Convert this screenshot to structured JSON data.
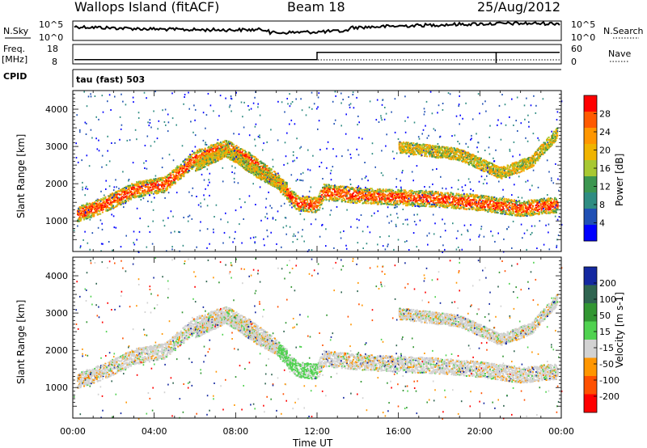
{
  "header": {
    "title": "Wallops Island (fitACF)",
    "beam": "Beam 18",
    "date": "25/Aug/2012"
  },
  "panels": {
    "nsky": {
      "label": "N.Sky",
      "ticks_left": [
        "10^5",
        "10^0"
      ],
      "ticks_right": [
        "10^5",
        "10^0"
      ],
      "right_label": "N.Search"
    },
    "freq": {
      "label_line1": "Freq.",
      "label_line2": "[MHz]",
      "ticks_left": [
        "18",
        "8"
      ],
      "ticks_right": [
        "60",
        "0"
      ],
      "right_label": "Nave"
    },
    "cpid": {
      "label": "CPID",
      "value": "tau (fast) 503"
    }
  },
  "axes": {
    "ylabel": "Slant Range [km]",
    "yticks": [
      "4000",
      "3000",
      "2000",
      "1000"
    ],
    "xticks": [
      "00:00",
      "04:00",
      "08:00",
      "12:00",
      "16:00",
      "20:00",
      "00:00"
    ],
    "xlabel": "Time UT"
  },
  "colorbars": {
    "power": {
      "label": "Power [dB]",
      "ticks": [
        "28",
        "24",
        "20",
        "16",
        "12",
        "8",
        "4"
      ],
      "colors": [
        "#ff0000",
        "#ff5a00",
        "#ff9600",
        "#f0b400",
        "#a8c832",
        "#3c9650",
        "#2f8c82",
        "#2050b4",
        "#0000ff"
      ]
    },
    "velocity": {
      "label": "Velocity [m s-1]",
      "ticks": [
        "200",
        "100",
        "50",
        "15",
        "-15",
        "-50",
        "-100",
        "-200"
      ],
      "colors": [
        "#1428a0",
        "#2f6450",
        "#329632",
        "#50d250",
        "#d2d2d2",
        "#ff9600",
        "#ff5000",
        "#ff0000"
      ]
    }
  },
  "chart_data": {
    "type": "heatmap",
    "x_range_hours": [
      0,
      24
    ],
    "y_range_km": [
      180,
      4500
    ],
    "freq_step": {
      "before_mhz": 10.5,
      "after_mhz": 14.8,
      "time_hours": 12
    },
    "echo_bands": [
      {
        "name": "main-arc",
        "points": [
          [
            0.2,
            1200
          ],
          [
            1.5,
            1450
          ],
          [
            3,
            1850
          ],
          [
            4.5,
            2000
          ],
          [
            6,
            2700
          ],
          [
            7.5,
            3000
          ],
          [
            8.5,
            2700
          ],
          [
            10,
            2100
          ],
          [
            11,
            1500
          ],
          [
            12,
            1450
          ],
          [
            12.3,
            1800
          ],
          [
            14,
            1700
          ],
          [
            16,
            1650
          ],
          [
            18,
            1600
          ],
          [
            20,
            1500
          ],
          [
            22,
            1350
          ],
          [
            23.8,
            1450
          ]
        ]
      },
      {
        "name": "upper-arc",
        "points": [
          [
            6,
            2500
          ],
          [
            7.5,
            2900
          ],
          [
            9,
            2350
          ],
          [
            10.5,
            1900
          ]
        ]
      },
      {
        "name": "late-rise",
        "points": [
          [
            16,
            3000
          ],
          [
            19,
            2800
          ],
          [
            21,
            2300
          ],
          [
            22.5,
            2600
          ],
          [
            23.8,
            3400
          ]
        ]
      }
    ]
  }
}
